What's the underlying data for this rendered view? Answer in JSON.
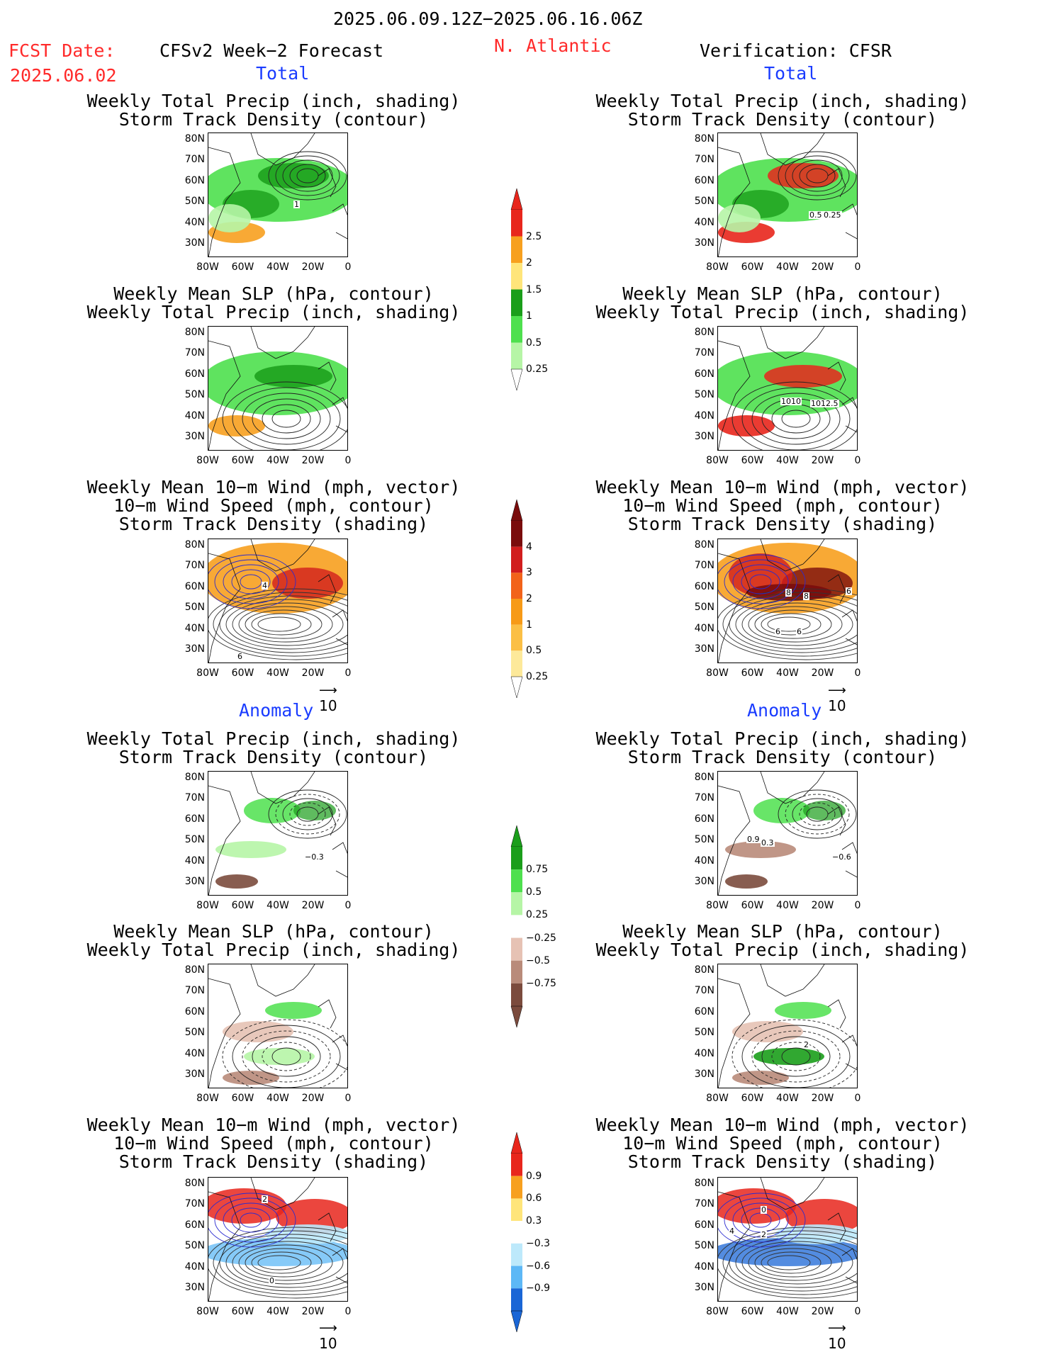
{
  "header": {
    "period": "2025.06.09.12Z−2025.06.16.06Z",
    "fcst_label": "FCST Date:",
    "fcst_date": "2025.06.02",
    "model_title": "CFSv2 Week−2 Forecast",
    "region": "N. Atlantic",
    "verification": "Verification: CFSR"
  },
  "sections": {
    "total": "Total",
    "anomaly": "Anomaly"
  },
  "titles": {
    "precip_track": [
      "Weekly Total Precip (inch, shading)",
      "Storm Track Density (contour)"
    ],
    "slp_precip": [
      "Weekly Mean SLP (hPa, contour)",
      "Weekly Total Precip (inch, shading)"
    ],
    "wind_track": [
      "Weekly Mean 10−m Wind (mph, vector)",
      "10−m Wind Speed (mph, contour)",
      "Storm Track Density (shading)"
    ]
  },
  "axes": {
    "lat_labels": [
      "80N",
      "70N",
      "60N",
      "50N",
      "40N",
      "30N"
    ],
    "lon_labels": [
      "80W",
      "60W",
      "40W",
      "20W",
      "0"
    ]
  },
  "vector_ref": "10",
  "colorbars": {
    "precip_total": {
      "labels": [
        "2.5",
        "2",
        "1.5",
        "1",
        "0.5",
        "0.25"
      ],
      "colors": [
        "#e8261c",
        "#f7a01f",
        "#ffe57a",
        "#1a9e1a",
        "#4ee04e",
        "#b6f5a6"
      ]
    },
    "track_total": {
      "labels": [
        "4",
        "3",
        "2",
        "1",
        "0.5",
        "0.25"
      ],
      "colors": [
        "#7a0c0c",
        "#d11d1d",
        "#f2631a",
        "#f79a17",
        "#fbbf45",
        "#fde99a"
      ]
    },
    "precip_anom": {
      "labels": [
        "0.75",
        "0.5",
        "0.25",
        "−0.25",
        "−0.5",
        "−0.75"
      ],
      "colors": [
        "#1b9e1b",
        "#4ee04e",
        "#b6f5a6",
        "#ffffff",
        "#e6c2b4",
        "#b98b7a",
        "#7b4b3d"
      ]
    },
    "track_anom": {
      "labels": [
        "0.9",
        "0.6",
        "0.3",
        "−0.3",
        "−0.6",
        "−0.9"
      ],
      "colors": [
        "#e8261c",
        "#f7a01f",
        "#ffe57a",
        "#ffffff",
        "#bde9fb",
        "#5db8f6",
        "#1a66d6"
      ]
    }
  },
  "panel_labels": {
    "fcst_track_total": [
      "1"
    ],
    "obs_track_total": [
      "0.5",
      "0.25"
    ],
    "obs_slp_total": [
      "1010",
      "1012.5"
    ],
    "fcst_wind_total": [
      "4",
      "6"
    ],
    "obs_wind_total": [
      "8",
      "8",
      "6",
      "6",
      "6"
    ],
    "fcst_track_anom": [
      "−0.3"
    ],
    "obs_track_anom": [
      "0.9",
      "0.3",
      "−0.6"
    ],
    "obs_slp_anom": [
      "2"
    ],
    "fcst_wind_anom": [
      "2",
      "0"
    ],
    "obs_wind_anom": [
      "4",
      "2",
      "0"
    ]
  }
}
